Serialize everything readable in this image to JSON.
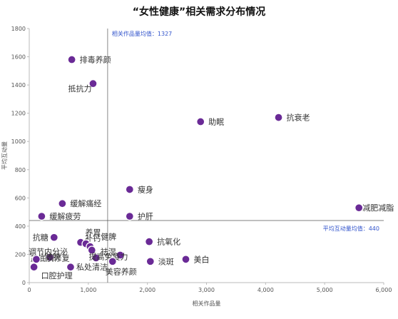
{
  "chart_data": {
    "type": "scatter",
    "title": "“女性健康”相关需求分布情况",
    "xlabel": "相关作品量",
    "ylabel": "平均互动量",
    "xlim": [
      0,
      6000
    ],
    "ylim": [
      0,
      1800
    ],
    "x_ticks": [
      "0",
      "1,000",
      "2,000",
      "3,000",
      "4,000",
      "5,000",
      "6,000"
    ],
    "y_ticks": [
      "0",
      "200",
      "400",
      "600",
      "800",
      "1000",
      "1200",
      "1400",
      "1600",
      "1800"
    ],
    "grid": false,
    "point_color": "#6a2a96",
    "reference_lines": {
      "x": {
        "value": 1327,
        "label": "相关作品量均值：1327",
        "color": "#3355cc"
      },
      "y": {
        "value": 440,
        "label": "平均互动量均值：440",
        "color": "#3355cc"
      }
    },
    "points": [
      {
        "label": "排毒养颜",
        "x": 720,
        "y": 1580
      },
      {
        "label": "抵抗力",
        "x": 1080,
        "y": 1410
      },
      {
        "label": "助眠",
        "x": 2900,
        "y": 1140
      },
      {
        "label": "抗衰老",
        "x": 4220,
        "y": 1170
      },
      {
        "label": "瘦身",
        "x": 1700,
        "y": 660
      },
      {
        "label": "缓解痛经",
        "x": 560,
        "y": 560
      },
      {
        "label": "缓解疲劳",
        "x": 210,
        "y": 470
      },
      {
        "label": "护肝",
        "x": 1700,
        "y": 470
      },
      {
        "label": "减肥减脂",
        "x": 5580,
        "y": 530
      },
      {
        "label": "抗糖",
        "x": 420,
        "y": 320
      },
      {
        "label": "补钙",
        "x": 870,
        "y": 285
      },
      {
        "label": "养胃",
        "x": 960,
        "y": 275
      },
      {
        "label": "健脾",
        "x": 1030,
        "y": 255
      },
      {
        "label": "祛湿",
        "x": 1060,
        "y": 230
      },
      {
        "label": "抗氧化",
        "x": 2030,
        "y": 290
      },
      {
        "label": "调节内分泌",
        "x": 350,
        "y": 180
      },
      {
        "label": "盆底肌修复",
        "x": 1130,
        "y": 175
      },
      {
        "label": "提高免疫力",
        "x": 1540,
        "y": 195
      },
      {
        "label": "美白",
        "x": 2650,
        "y": 165
      },
      {
        "label": "淡斑",
        "x": 2050,
        "y": 150
      },
      {
        "label": "防脱",
        "x": 120,
        "y": 165
      },
      {
        "label": "口腔护理",
        "x": 80,
        "y": 110
      },
      {
        "label": "私处清洁",
        "x": 700,
        "y": 110
      },
      {
        "label": "美容养颜",
        "x": 1410,
        "y": 150
      }
    ]
  }
}
